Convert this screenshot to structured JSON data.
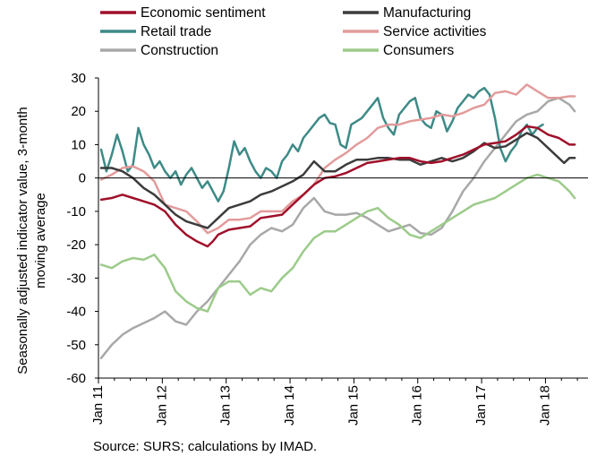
{
  "chart_data": {
    "type": "line",
    "title": "",
    "ylabel": "Seasonally adjusted indicator value, 3-month moving average",
    "xlabel": "",
    "ylim": [
      -60,
      30
    ],
    "yticks": [
      30,
      20,
      10,
      0,
      -10,
      -20,
      -30,
      -40,
      -50,
      -60
    ],
    "xticks": [
      "Jan 11",
      "Jan 12",
      "Jan 13",
      "Jan 14",
      "Jan 15",
      "Jan 16",
      "Jan 17",
      "Jan 18"
    ],
    "x_start": "2011-01",
    "x_end": "2018-09",
    "legend_position": "top",
    "grid": false,
    "series": [
      {
        "name": "Economic sentiment",
        "color": "#a0102a",
        "points": [
          [
            0,
            -6.5
          ],
          [
            2,
            -6
          ],
          [
            4,
            -5
          ],
          [
            6,
            -6
          ],
          [
            8,
            -7
          ],
          [
            10,
            -8
          ],
          [
            12,
            -10
          ],
          [
            14,
            -14
          ],
          [
            16,
            -17
          ],
          [
            18,
            -19
          ],
          [
            20,
            -20.5
          ],
          [
            21,
            -19
          ],
          [
            22,
            -17
          ],
          [
            24,
            -15.5
          ],
          [
            26,
            -15
          ],
          [
            28,
            -14.5
          ],
          [
            30,
            -12
          ],
          [
            32,
            -11.5
          ],
          [
            34,
            -11
          ],
          [
            36,
            -8
          ],
          [
            38,
            -5
          ],
          [
            40,
            -2
          ],
          [
            42,
            0
          ],
          [
            44,
            0.5
          ],
          [
            46,
            1.5
          ],
          [
            48,
            3
          ],
          [
            50,
            4.5
          ],
          [
            52,
            5
          ],
          [
            54,
            5.5
          ],
          [
            56,
            6
          ],
          [
            58,
            6
          ],
          [
            60,
            5
          ],
          [
            62,
            4.5
          ],
          [
            64,
            5
          ],
          [
            66,
            6
          ],
          [
            68,
            7
          ],
          [
            70,
            8.5
          ],
          [
            72,
            10
          ],
          [
            74,
            10.5
          ],
          [
            76,
            11
          ],
          [
            78,
            13
          ],
          [
            80,
            15.5
          ],
          [
            82,
            15
          ],
          [
            84,
            13
          ],
          [
            86,
            12
          ],
          [
            88,
            10
          ],
          [
            89,
            10
          ]
        ]
      },
      {
        "name": "Manufacturing",
        "color": "#3c3c3c",
        "points": [
          [
            0,
            3
          ],
          [
            2,
            3
          ],
          [
            4,
            2
          ],
          [
            6,
            0
          ],
          [
            8,
            -3
          ],
          [
            10,
            -5
          ],
          [
            12,
            -8
          ],
          [
            14,
            -11
          ],
          [
            16,
            -13
          ],
          [
            18,
            -14
          ],
          [
            20,
            -15
          ],
          [
            22,
            -12
          ],
          [
            24,
            -9
          ],
          [
            26,
            -8
          ],
          [
            28,
            -7
          ],
          [
            30,
            -5
          ],
          [
            32,
            -4
          ],
          [
            34,
            -2.5
          ],
          [
            36,
            -1
          ],
          [
            38,
            1
          ],
          [
            40,
            5
          ],
          [
            42,
            2
          ],
          [
            44,
            2
          ],
          [
            46,
            4
          ],
          [
            48,
            5.5
          ],
          [
            50,
            5.5
          ],
          [
            52,
            6
          ],
          [
            54,
            6
          ],
          [
            56,
            5.5
          ],
          [
            58,
            5.5
          ],
          [
            60,
            4
          ],
          [
            62,
            5
          ],
          [
            64,
            6
          ],
          [
            66,
            5
          ],
          [
            68,
            6
          ],
          [
            70,
            8
          ],
          [
            72,
            10.5
          ],
          [
            74,
            9
          ],
          [
            76,
            9.5
          ],
          [
            78,
            11.5
          ],
          [
            80,
            13.5
          ],
          [
            82,
            12
          ],
          [
            84,
            9
          ],
          [
            86,
            6
          ],
          [
            87,
            4.5
          ],
          [
            88,
            6
          ],
          [
            89,
            6
          ]
        ]
      },
      {
        "name": "Retail trade",
        "color": "#3d8a86",
        "points": [
          [
            0,
            8.5
          ],
          [
            1,
            2
          ],
          [
            2,
            7
          ],
          [
            3,
            13
          ],
          [
            4,
            8
          ],
          [
            5,
            2
          ],
          [
            6,
            4
          ],
          [
            7,
            15
          ],
          [
            8,
            10
          ],
          [
            9,
            7
          ],
          [
            10,
            3
          ],
          [
            11,
            5
          ],
          [
            12,
            2
          ],
          [
            13,
            0
          ],
          [
            14,
            2
          ],
          [
            15,
            -2
          ],
          [
            16,
            1
          ],
          [
            17,
            3
          ],
          [
            18,
            0
          ],
          [
            19,
            -3
          ],
          [
            20,
            -1
          ],
          [
            22,
            -7
          ],
          [
            23,
            -4
          ],
          [
            24,
            3
          ],
          [
            25,
            11
          ],
          [
            26,
            7
          ],
          [
            27,
            9
          ],
          [
            28,
            5
          ],
          [
            29,
            2
          ],
          [
            30,
            0
          ],
          [
            31,
            3
          ],
          [
            32,
            2
          ],
          [
            33,
            0
          ],
          [
            34,
            5
          ],
          [
            35,
            7
          ],
          [
            36,
            10
          ],
          [
            37,
            8
          ],
          [
            38,
            12
          ],
          [
            39,
            14
          ],
          [
            40,
            16
          ],
          [
            41,
            18
          ],
          [
            42,
            19
          ],
          [
            43,
            16.5
          ],
          [
            44,
            16
          ],
          [
            45,
            10
          ],
          [
            46,
            9
          ],
          [
            47,
            16
          ],
          [
            48,
            17
          ],
          [
            49,
            18
          ],
          [
            50,
            20
          ],
          [
            51,
            22
          ],
          [
            52,
            24
          ],
          [
            53,
            18
          ],
          [
            54,
            15
          ],
          [
            55,
            13
          ],
          [
            56,
            19
          ],
          [
            57,
            21
          ],
          [
            58,
            23
          ],
          [
            59,
            24
          ],
          [
            60,
            18
          ],
          [
            61,
            16
          ],
          [
            62,
            15
          ],
          [
            63,
            20
          ],
          [
            64,
            19
          ],
          [
            65,
            14
          ],
          [
            66,
            17
          ],
          [
            67,
            21
          ],
          [
            68,
            23
          ],
          [
            69,
            25
          ],
          [
            70,
            24
          ],
          [
            71,
            26
          ],
          [
            72,
            27
          ],
          [
            73,
            25
          ],
          [
            74,
            18
          ],
          [
            75,
            9
          ],
          [
            76,
            5
          ],
          [
            77,
            8
          ],
          [
            78,
            10
          ],
          [
            79,
            14
          ],
          [
            80,
            16
          ],
          [
            81,
            13
          ],
          [
            82,
            15
          ],
          [
            83,
            16
          ]
        ]
      },
      {
        "name": "Service activities",
        "color": "#e29b9b",
        "points": [
          [
            0,
            -0.5
          ],
          [
            2,
            1
          ],
          [
            4,
            3
          ],
          [
            6,
            3.5
          ],
          [
            8,
            2
          ],
          [
            10,
            -1
          ],
          [
            12,
            -8
          ],
          [
            14,
            -9
          ],
          [
            16,
            -10
          ],
          [
            18,
            -13
          ],
          [
            20,
            -16.5
          ],
          [
            22,
            -15
          ],
          [
            24,
            -12.5
          ],
          [
            26,
            -12.5
          ],
          [
            28,
            -12
          ],
          [
            30,
            -10
          ],
          [
            32,
            -10
          ],
          [
            34,
            -10
          ],
          [
            36,
            -7
          ],
          [
            38,
            -5
          ],
          [
            40,
            -2
          ],
          [
            42,
            3
          ],
          [
            44,
            5.5
          ],
          [
            46,
            7.5
          ],
          [
            48,
            10
          ],
          [
            50,
            12
          ],
          [
            52,
            15
          ],
          [
            54,
            16
          ],
          [
            56,
            16
          ],
          [
            58,
            17
          ],
          [
            60,
            17.5
          ],
          [
            62,
            18
          ],
          [
            64,
            19
          ],
          [
            66,
            18.5
          ],
          [
            68,
            19.5
          ],
          [
            70,
            21
          ],
          [
            72,
            22
          ],
          [
            74,
            25.5
          ],
          [
            76,
            26
          ],
          [
            78,
            25
          ],
          [
            80,
            28
          ],
          [
            82,
            26
          ],
          [
            84,
            24
          ],
          [
            86,
            24
          ],
          [
            88,
            24.5
          ],
          [
            89,
            24.5
          ]
        ]
      },
      {
        "name": "Construction",
        "color": "#a8a8a8",
        "points": [
          [
            0,
            -54
          ],
          [
            2,
            -50
          ],
          [
            4,
            -47
          ],
          [
            6,
            -45
          ],
          [
            8,
            -43.5
          ],
          [
            10,
            -42
          ],
          [
            12,
            -40
          ],
          [
            14,
            -43
          ],
          [
            16,
            -44
          ],
          [
            18,
            -40
          ],
          [
            20,
            -37
          ],
          [
            22,
            -33
          ],
          [
            24,
            -29
          ],
          [
            26,
            -25
          ],
          [
            28,
            -20
          ],
          [
            30,
            -17
          ],
          [
            32,
            -15
          ],
          [
            34,
            -16
          ],
          [
            36,
            -14
          ],
          [
            38,
            -9
          ],
          [
            40,
            -6
          ],
          [
            42,
            -10
          ],
          [
            44,
            -11
          ],
          [
            46,
            -11
          ],
          [
            48,
            -10.5
          ],
          [
            50,
            -12
          ],
          [
            52,
            -14
          ],
          [
            54,
            -16
          ],
          [
            56,
            -15
          ],
          [
            58,
            -14
          ],
          [
            60,
            -16.5
          ],
          [
            62,
            -17
          ],
          [
            64,
            -15
          ],
          [
            66,
            -10
          ],
          [
            68,
            -4
          ],
          [
            70,
            0
          ],
          [
            72,
            5
          ],
          [
            74,
            9
          ],
          [
            76,
            13
          ],
          [
            78,
            17
          ],
          [
            80,
            19
          ],
          [
            82,
            20
          ],
          [
            84,
            23
          ],
          [
            86,
            24
          ],
          [
            88,
            22
          ],
          [
            89,
            20
          ]
        ]
      },
      {
        "name": "Consumers",
        "color": "#9ccb8a",
        "points": [
          [
            0,
            -26
          ],
          [
            2,
            -27
          ],
          [
            4,
            -25
          ],
          [
            6,
            -24
          ],
          [
            8,
            -24.5
          ],
          [
            10,
            -23
          ],
          [
            12,
            -27
          ],
          [
            14,
            -34
          ],
          [
            16,
            -37
          ],
          [
            18,
            -39
          ],
          [
            20,
            -40
          ],
          [
            22,
            -33
          ],
          [
            24,
            -31
          ],
          [
            26,
            -31
          ],
          [
            28,
            -35
          ],
          [
            30,
            -33
          ],
          [
            32,
            -34
          ],
          [
            34,
            -30
          ],
          [
            36,
            -27
          ],
          [
            38,
            -22
          ],
          [
            40,
            -18
          ],
          [
            42,
            -16
          ],
          [
            44,
            -16
          ],
          [
            46,
            -14
          ],
          [
            48,
            -12
          ],
          [
            50,
            -10
          ],
          [
            52,
            -9
          ],
          [
            54,
            -12
          ],
          [
            56,
            -14
          ],
          [
            58,
            -17
          ],
          [
            60,
            -18
          ],
          [
            62,
            -16
          ],
          [
            64,
            -14
          ],
          [
            66,
            -12
          ],
          [
            68,
            -10
          ],
          [
            70,
            -8
          ],
          [
            72,
            -7
          ],
          [
            74,
            -6
          ],
          [
            76,
            -4
          ],
          [
            78,
            -2
          ],
          [
            80,
            0
          ],
          [
            82,
            1
          ],
          [
            84,
            0
          ],
          [
            86,
            -1
          ],
          [
            88,
            -4
          ],
          [
            89,
            -6
          ]
        ]
      }
    ]
  },
  "source_text": "Source: SURS; calculations by IMAD."
}
